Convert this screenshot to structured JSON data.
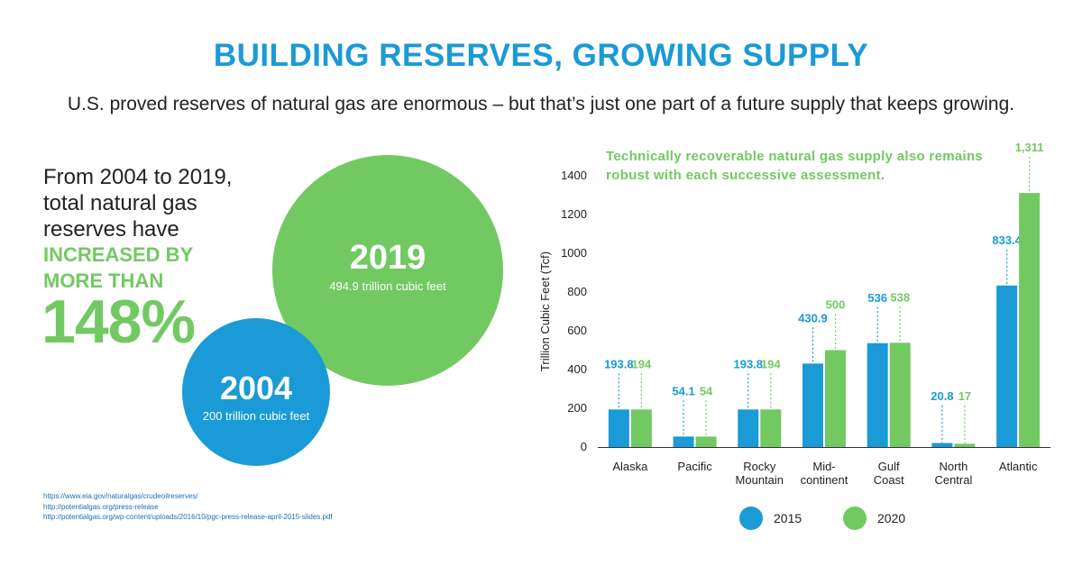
{
  "header": {
    "title": "BUILDING RESERVES, GROWING SUPPLY",
    "subtitle": "U.S. proved reserves of natural gas are enormous – but that’s just one part of a future supply that keeps growing."
  },
  "left_panel": {
    "intro": "From 2004 to 2019, total natural gas reserves have",
    "emphasis_line1": "INCREASED BY",
    "emphasis_line2": "MORE THAN",
    "big_number": "148%",
    "circle_2004": {
      "year": "2004",
      "label": "200 trillion cubic feet"
    },
    "circle_2019": {
      "year": "2019",
      "label": "494.9 trillion cubic feet"
    }
  },
  "sources": [
    "https://www.eia.gov/naturalgas/crudeoilreserves/",
    "http://potentialgas.org/press-release",
    "http://potentialgas.org/wp-content/uploads/2016/10/pgc-press-release-april-2015-slides.pdf"
  ],
  "chart_note": "Technically recoverable natural gas supply also remains robust with each successive assessment.",
  "colors": {
    "blue": "#1a9ad6",
    "green": "#72c962"
  },
  "chart_data": {
    "type": "bar",
    "title": "Technically recoverable natural gas supply also remains robust with each successive assessment.",
    "xlabel": "",
    "ylabel": "Trillion Cubic Feet (Tcf)",
    "ylim": [
      0,
      1400
    ],
    "yticks": [
      0,
      200,
      400,
      600,
      800,
      1000,
      1200,
      1400
    ],
    "categories": [
      [
        "Alaska"
      ],
      [
        "Pacific"
      ],
      [
        "Rocky",
        "Mountain"
      ],
      [
        "Mid-",
        "continent"
      ],
      [
        "Gulf",
        "Coast"
      ],
      [
        "North",
        "Central"
      ],
      [
        "Atlantic"
      ]
    ],
    "series": [
      {
        "name": "2015",
        "color": "#1a9ad6",
        "values": [
          193.8,
          54.1,
          193.8,
          430.9,
          536,
          20.8,
          833.4
        ],
        "labels": [
          "193.8",
          "54.1",
          "193.8",
          "430.9",
          "536",
          "20.8",
          "833.4"
        ]
      },
      {
        "name": "2020",
        "color": "#72c962",
        "values": [
          194,
          54,
          194,
          500,
          538,
          17,
          1311
        ],
        "labels": [
          "194",
          "54",
          "194",
          "500",
          "538",
          "17",
          "1,311"
        ]
      }
    ],
    "legend_position": "bottom"
  }
}
